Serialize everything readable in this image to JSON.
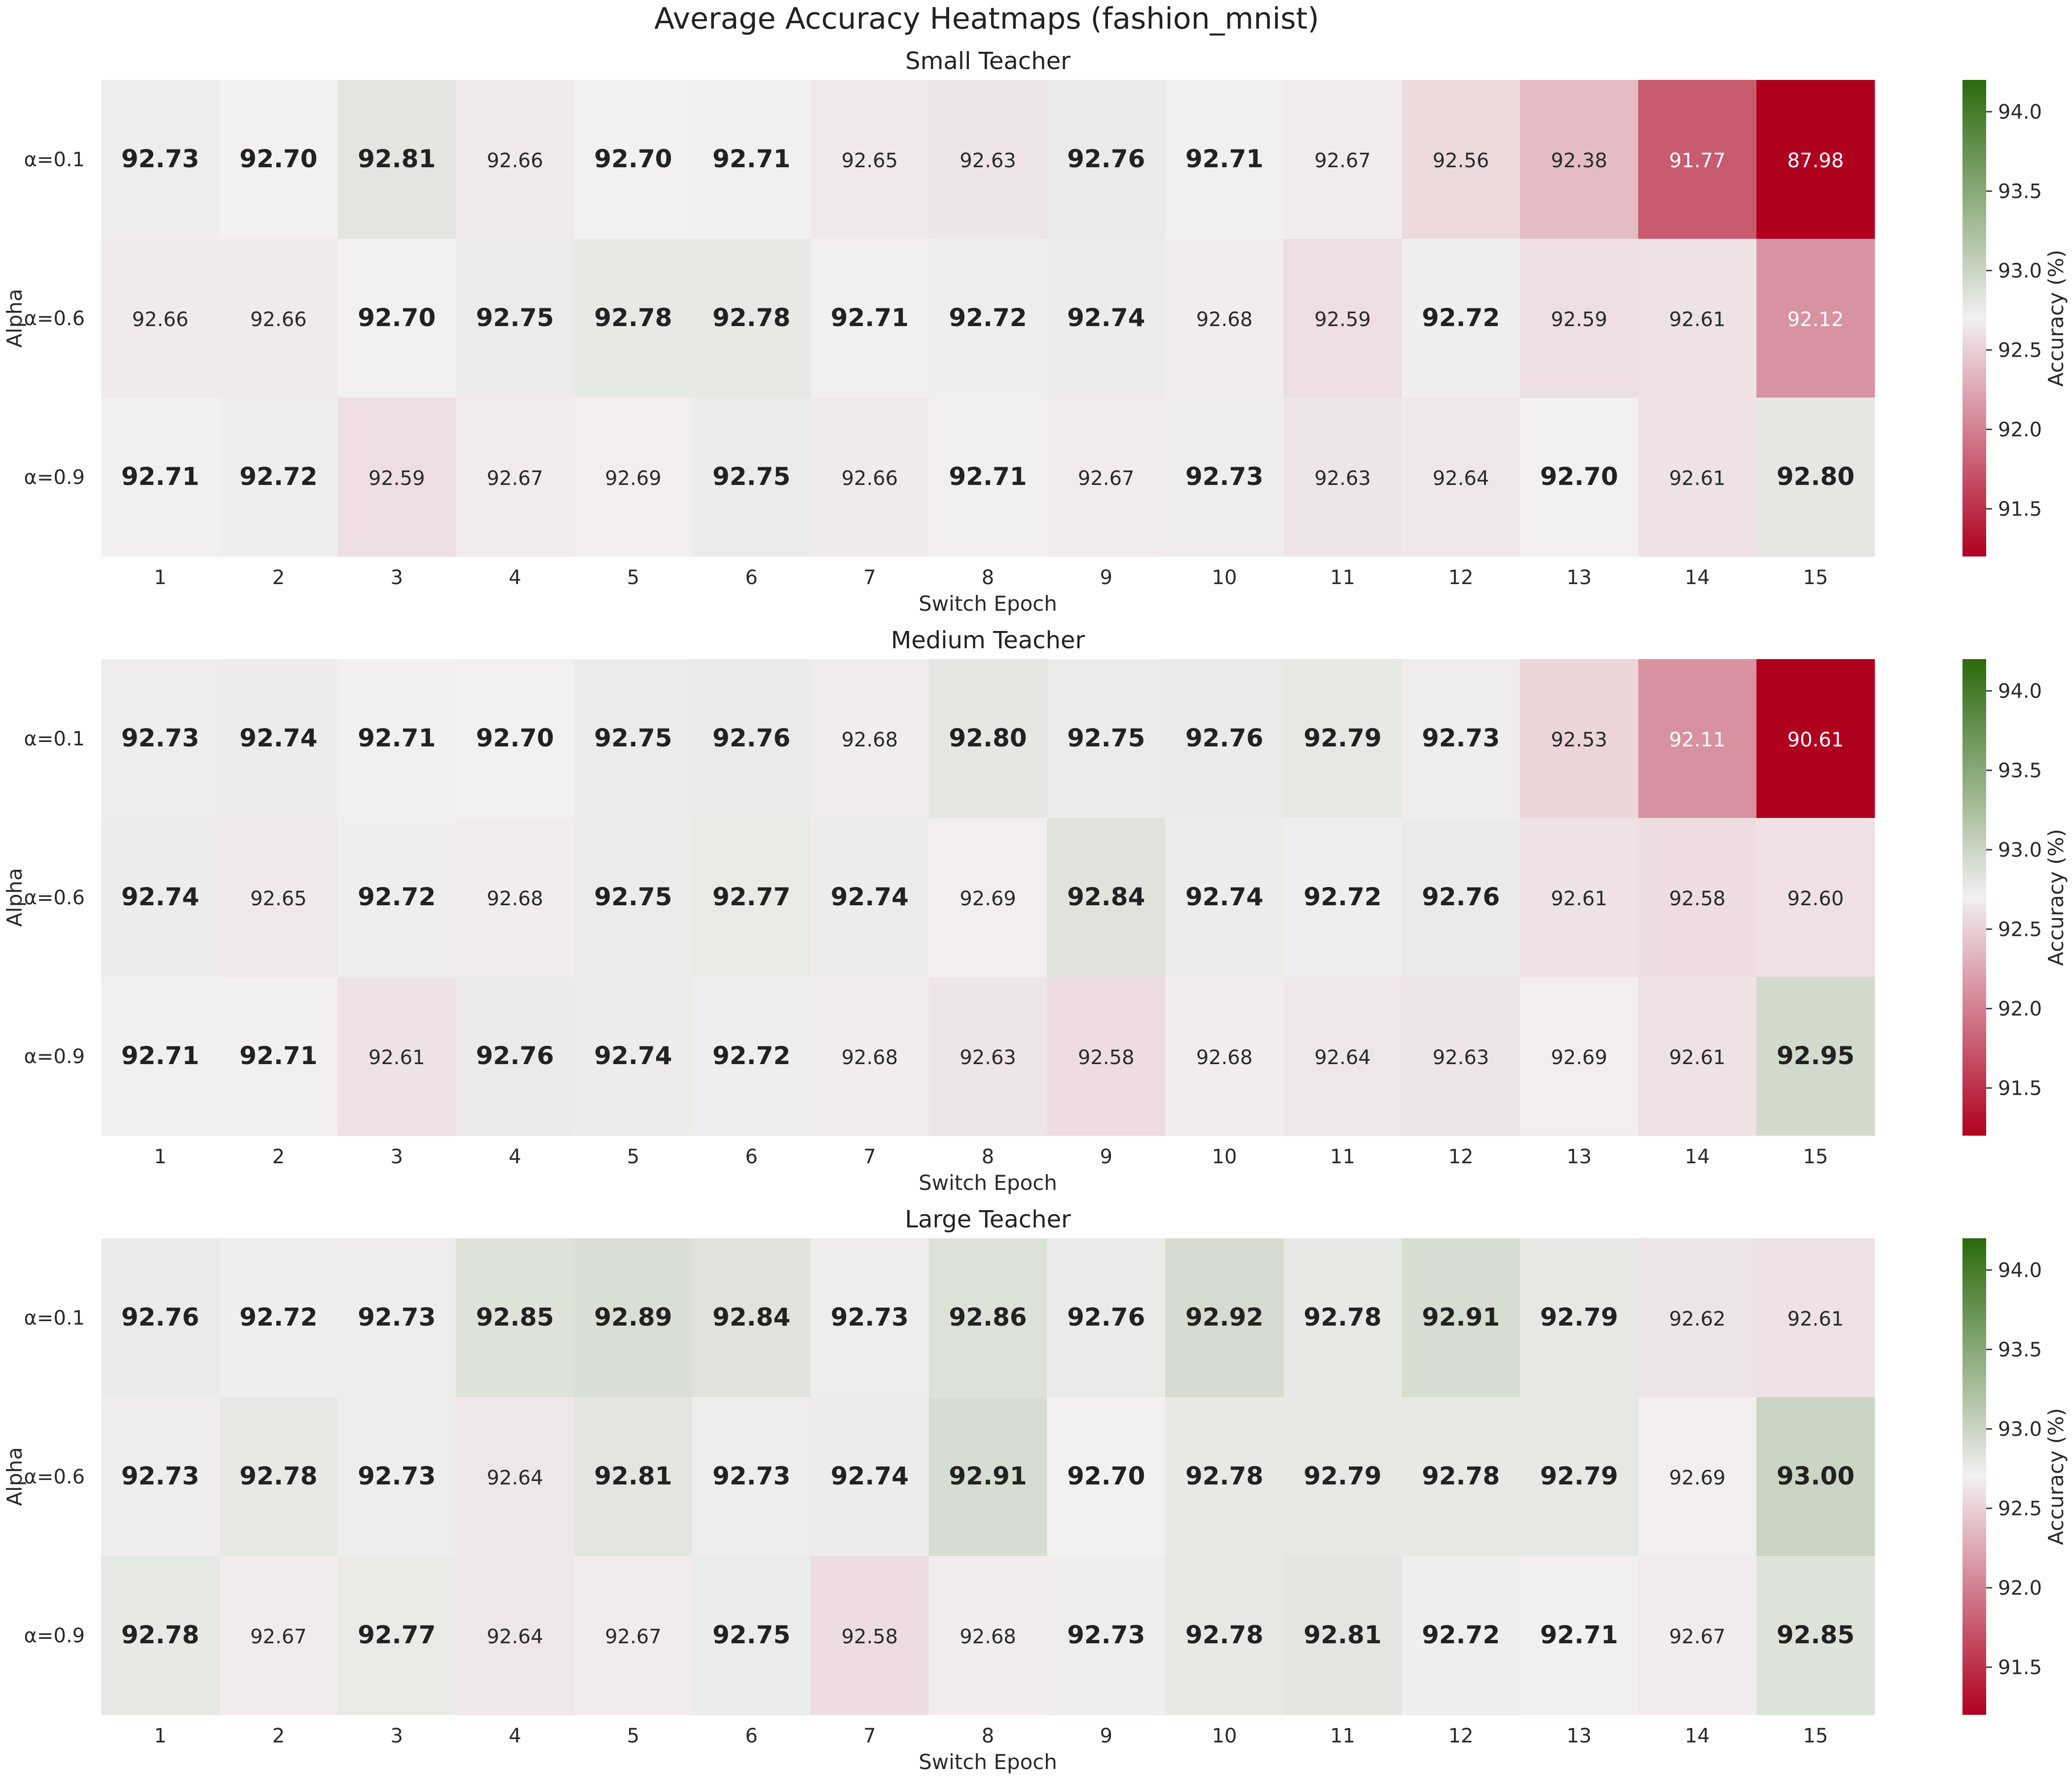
{
  "figure": {
    "title": "Average Accuracy Heatmaps (fashion_mnist)"
  },
  "colors": {
    "high": "#2b6a0c",
    "mid": "#f2f0f1",
    "low": "#b00020",
    "bold_text": "#222222",
    "normal_text": "#2a2a2a",
    "light_text": "#ffffff"
  },
  "chart_data": [
    {
      "type": "heatmap",
      "title": "Small Teacher",
      "xlabel": "Switch Epoch",
      "ylabel": "Alpha",
      "x": [
        "1",
        "2",
        "3",
        "4",
        "5",
        "6",
        "7",
        "8",
        "9",
        "10",
        "11",
        "12",
        "13",
        "14",
        "15"
      ],
      "y": [
        "α=0.1",
        "α=0.6",
        "α=0.9"
      ],
      "values": [
        [
          92.73,
          92.7,
          92.81,
          92.66,
          92.7,
          92.71,
          92.65,
          92.63,
          92.76,
          92.71,
          92.67,
          92.56,
          92.38,
          91.77,
          87.98
        ],
        [
          92.66,
          92.66,
          92.7,
          92.75,
          92.78,
          92.78,
          92.71,
          92.72,
          92.74,
          92.68,
          92.59,
          92.72,
          92.59,
          92.61,
          92.12
        ],
        [
          92.71,
          92.72,
          92.59,
          92.67,
          92.69,
          92.75,
          92.66,
          92.71,
          92.67,
          92.73,
          92.63,
          92.64,
          92.7,
          92.61,
          92.8
        ]
      ],
      "colorbar": {
        "label": "Accuracy (%)",
        "ticks": [
          "91.5",
          "92.0",
          "92.5",
          "93.0",
          "93.5",
          "94.0"
        ],
        "range": [
          91.2,
          94.2
        ],
        "center": 92.7
      }
    },
    {
      "type": "heatmap",
      "title": "Medium Teacher",
      "xlabel": "Switch Epoch",
      "ylabel": "Alpha",
      "x": [
        "1",
        "2",
        "3",
        "4",
        "5",
        "6",
        "7",
        "8",
        "9",
        "10",
        "11",
        "12",
        "13",
        "14",
        "15"
      ],
      "y": [
        "α=0.1",
        "α=0.6",
        "α=0.9"
      ],
      "values": [
        [
          92.73,
          92.74,
          92.71,
          92.7,
          92.75,
          92.76,
          92.68,
          92.8,
          92.75,
          92.76,
          92.79,
          92.73,
          92.53,
          92.11,
          90.61
        ],
        [
          92.74,
          92.65,
          92.72,
          92.68,
          92.75,
          92.77,
          92.74,
          92.69,
          92.84,
          92.74,
          92.72,
          92.76,
          92.61,
          92.58,
          92.6
        ],
        [
          92.71,
          92.71,
          92.61,
          92.76,
          92.74,
          92.72,
          92.68,
          92.63,
          92.58,
          92.68,
          92.64,
          92.63,
          92.69,
          92.61,
          92.95
        ]
      ],
      "colorbar": {
        "label": "Accuracy (%)",
        "ticks": [
          "91.5",
          "92.0",
          "92.5",
          "93.0",
          "93.5",
          "94.0"
        ],
        "range": [
          91.2,
          94.2
        ],
        "center": 92.7
      }
    },
    {
      "type": "heatmap",
      "title": "Large Teacher",
      "xlabel": "Switch Epoch",
      "ylabel": "Alpha",
      "x": [
        "1",
        "2",
        "3",
        "4",
        "5",
        "6",
        "7",
        "8",
        "9",
        "10",
        "11",
        "12",
        "13",
        "14",
        "15"
      ],
      "y": [
        "α=0.1",
        "α=0.6",
        "α=0.9"
      ],
      "values": [
        [
          92.76,
          92.72,
          92.73,
          92.85,
          92.89,
          92.84,
          92.73,
          92.86,
          92.76,
          92.92,
          92.78,
          92.91,
          92.79,
          92.62,
          92.61
        ],
        [
          92.73,
          92.78,
          92.73,
          92.64,
          92.81,
          92.73,
          92.74,
          92.91,
          92.7,
          92.78,
          92.79,
          92.78,
          92.79,
          92.69,
          93.0
        ],
        [
          92.78,
          92.67,
          92.77,
          92.64,
          92.67,
          92.75,
          92.58,
          92.68,
          92.73,
          92.78,
          92.81,
          92.72,
          92.71,
          92.67,
          92.85
        ]
      ],
      "colorbar": {
        "label": "Accuracy (%)",
        "ticks": [
          "91.5",
          "92.0",
          "92.5",
          "93.0",
          "93.5",
          "94.0"
        ],
        "range": [
          91.2,
          94.2
        ],
        "center": 92.7
      }
    }
  ]
}
